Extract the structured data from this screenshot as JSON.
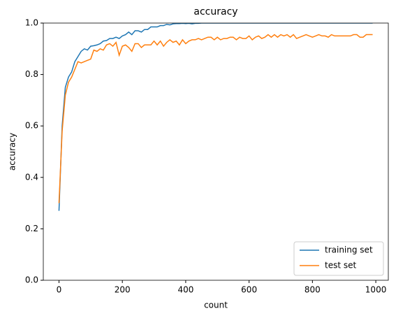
{
  "chart_data": {
    "type": "line",
    "title": "accuracy",
    "x_label": "count",
    "y_label": "accuracy",
    "x": [
      0,
      10,
      20,
      30,
      40,
      50,
      60,
      70,
      80,
      90,
      100,
      110,
      120,
      130,
      140,
      150,
      160,
      170,
      180,
      190,
      200,
      210,
      220,
      230,
      240,
      250,
      260,
      270,
      280,
      290,
      300,
      310,
      320,
      330,
      340,
      350,
      360,
      370,
      380,
      390,
      400,
      410,
      420,
      430,
      440,
      450,
      460,
      470,
      480,
      490,
      500,
      510,
      520,
      530,
      540,
      550,
      560,
      570,
      580,
      590,
      600,
      610,
      620,
      630,
      640,
      650,
      660,
      670,
      680,
      690,
      700,
      710,
      720,
      730,
      740,
      750,
      760,
      770,
      780,
      790,
      800,
      810,
      820,
      830,
      840,
      850,
      860,
      870,
      880,
      890,
      900,
      910,
      920,
      930,
      940,
      950,
      960,
      970,
      980,
      990
    ],
    "series": [
      {
        "name": "training set",
        "color": "#1f77b4",
        "values": [
          0.27,
          0.6,
          0.75,
          0.79,
          0.81,
          0.85,
          0.87,
          0.89,
          0.9,
          0.895,
          0.91,
          0.912,
          0.915,
          0.92,
          0.93,
          0.932,
          0.94,
          0.94,
          0.945,
          0.94,
          0.95,
          0.955,
          0.965,
          0.955,
          0.97,
          0.97,
          0.965,
          0.975,
          0.975,
          0.985,
          0.985,
          0.985,
          0.99,
          0.99,
          0.995,
          0.993,
          0.997,
          0.998,
          0.998,
          0.999,
          0.998,
          0.999,
          0.997,
          0.999,
          0.999,
          1,
          1,
          1,
          1,
          1,
          1,
          1,
          1,
          1,
          1,
          1,
          1,
          1,
          1,
          1,
          1,
          1,
          1,
          1,
          1,
          1,
          1,
          1,
          1,
          1,
          1,
          1,
          1,
          1,
          1,
          1,
          1,
          1,
          1,
          1,
          1,
          1,
          1,
          1,
          1,
          1,
          1,
          1,
          1,
          1,
          1,
          1,
          1,
          1,
          1,
          1,
          1,
          1,
          1,
          1
        ]
      },
      {
        "name": "test set",
        "color": "#ff7f0e",
        "values": [
          0.3,
          0.58,
          0.72,
          0.77,
          0.79,
          0.82,
          0.85,
          0.845,
          0.85,
          0.855,
          0.86,
          0.895,
          0.89,
          0.9,
          0.895,
          0.915,
          0.92,
          0.91,
          0.925,
          0.875,
          0.91,
          0.915,
          0.905,
          0.89,
          0.92,
          0.92,
          0.905,
          0.915,
          0.915,
          0.915,
          0.93,
          0.915,
          0.93,
          0.91,
          0.925,
          0.935,
          0.925,
          0.93,
          0.915,
          0.935,
          0.92,
          0.93,
          0.935,
          0.935,
          0.94,
          0.935,
          0.94,
          0.945,
          0.945,
          0.935,
          0.945,
          0.935,
          0.94,
          0.94,
          0.945,
          0.945,
          0.935,
          0.945,
          0.94,
          0.94,
          0.95,
          0.935,
          0.945,
          0.95,
          0.94,
          0.945,
          0.955,
          0.945,
          0.955,
          0.945,
          0.955,
          0.95,
          0.955,
          0.945,
          0.955,
          0.94,
          0.945,
          0.95,
          0.955,
          0.95,
          0.945,
          0.95,
          0.955,
          0.95,
          0.95,
          0.945,
          0.955,
          0.95,
          0.95,
          0.95,
          0.95,
          0.95,
          0.95,
          0.955,
          0.955,
          0.945,
          0.945,
          0.955,
          0.955,
          0.955
        ]
      }
    ],
    "xlim": [
      -49.5,
      1039.5
    ],
    "ylim": [
      0,
      1
    ],
    "xticks": [
      0,
      200,
      400,
      600,
      800,
      1000
    ],
    "yticks": [
      {
        "value": 0,
        "label": "0.0"
      },
      0.2,
      0.4,
      0.6,
      0.8,
      {
        "value": 1,
        "label": "1.0"
      }
    ],
    "legend": "lower right"
  }
}
